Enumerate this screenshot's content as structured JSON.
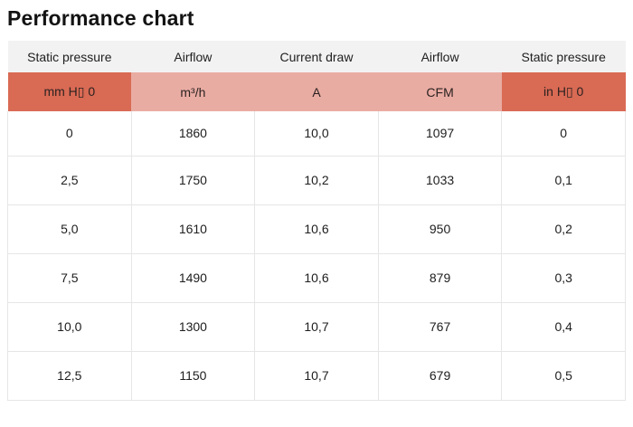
{
  "title": "Performance chart",
  "colors": {
    "header_bg": "#f2f2f2",
    "unit_dark_bg": "#d96a54",
    "unit_light_bg": "#e9aca3",
    "border": "#e6e6e6",
    "text": "#202020",
    "page_bg": "#ffffff"
  },
  "chart_data": {
    "type": "table",
    "title": "Performance chart",
    "columns": [
      {
        "header": "Static pressure",
        "unit": "mm H▯ 0",
        "unit_style": "dark"
      },
      {
        "header": "Airflow",
        "unit": "m³/h",
        "unit_style": "light"
      },
      {
        "header": "Current draw",
        "unit": "A",
        "unit_style": "light"
      },
      {
        "header": "Airflow",
        "unit": "CFM",
        "unit_style": "light"
      },
      {
        "header": "Static pressure",
        "unit": "in H▯ 0",
        "unit_style": "dark"
      }
    ],
    "rows": [
      [
        "0",
        "1860",
        "10,0",
        "1097",
        "0"
      ],
      [
        "2,5",
        "1750",
        "10,2",
        "1033",
        "0,1"
      ],
      [
        "5,0",
        "1610",
        "10,6",
        "950",
        "0,2"
      ],
      [
        "7,5",
        "1490",
        "10,6",
        "879",
        "0,3"
      ],
      [
        "10,0",
        "1300",
        "10,7",
        "767",
        "0,4"
      ],
      [
        "12,5",
        "1150",
        "10,7",
        "679",
        "0,5"
      ]
    ]
  }
}
